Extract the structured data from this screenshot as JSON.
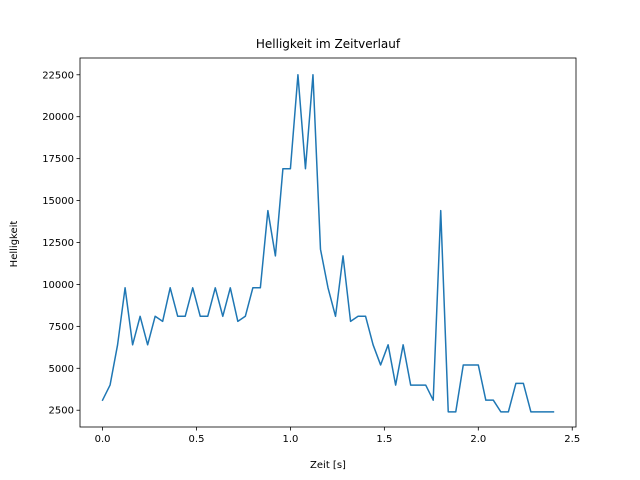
{
  "chart_data": {
    "type": "line",
    "title": "Helligkeit im Zeitverlauf",
    "xlabel": "Zeit [s]",
    "ylabel": "Helligkeit",
    "xlim": [
      -0.12,
      2.52
    ],
    "ylim": [
      1500,
      23500
    ],
    "xticks": [
      0.0,
      0.5,
      1.0,
      1.5,
      2.0,
      2.5
    ],
    "xtick_labels": [
      "0.0",
      "0.5",
      "1.0",
      "1.5",
      "2.0",
      "2.5"
    ],
    "yticks": [
      2500,
      5000,
      7500,
      10000,
      12500,
      15000,
      17500,
      20000,
      22500
    ],
    "ytick_labels": [
      "2500",
      "5000",
      "7500",
      "10000",
      "12500",
      "15000",
      "17500",
      "20000",
      "22500"
    ],
    "grid": false,
    "legend": false,
    "color": "#1f77b4",
    "series": [
      {
        "x": [
          0.0,
          0.04,
          0.08,
          0.12,
          0.16,
          0.2,
          0.24,
          0.28,
          0.32,
          0.36,
          0.4,
          0.44,
          0.48,
          0.52,
          0.56,
          0.6,
          0.64,
          0.68,
          0.72,
          0.76,
          0.8,
          0.84,
          0.88,
          0.92,
          0.96,
          1.0,
          1.04,
          1.08,
          1.12,
          1.16,
          1.2,
          1.24,
          1.28,
          1.32,
          1.36,
          1.4,
          1.44,
          1.48,
          1.52,
          1.56,
          1.6,
          1.64,
          1.68,
          1.72,
          1.76,
          1.8,
          1.84,
          1.88,
          1.92,
          1.96,
          2.0,
          2.04,
          2.08,
          2.12,
          2.16,
          2.2,
          2.24,
          2.28,
          2.32,
          2.36,
          2.4
        ],
        "values": [
          3100,
          4000,
          6400,
          9800,
          6400,
          8100,
          6400,
          8100,
          7800,
          9800,
          8100,
          8100,
          9800,
          8100,
          8100,
          9800,
          8100,
          9800,
          7800,
          8100,
          9800,
          9800,
          14400,
          11700,
          16900,
          16900,
          22500,
          16900,
          22500,
          12100,
          9800,
          8100,
          11700,
          7800,
          8100,
          8100,
          6400,
          5200,
          6400,
          4000,
          6400,
          4000,
          4000,
          4000,
          3100,
          14400,
          2400,
          2400,
          5200,
          5200,
          5200,
          3100,
          3100,
          2400,
          2400,
          4100,
          4100,
          2400,
          2400,
          2400,
          2400
        ]
      }
    ]
  }
}
